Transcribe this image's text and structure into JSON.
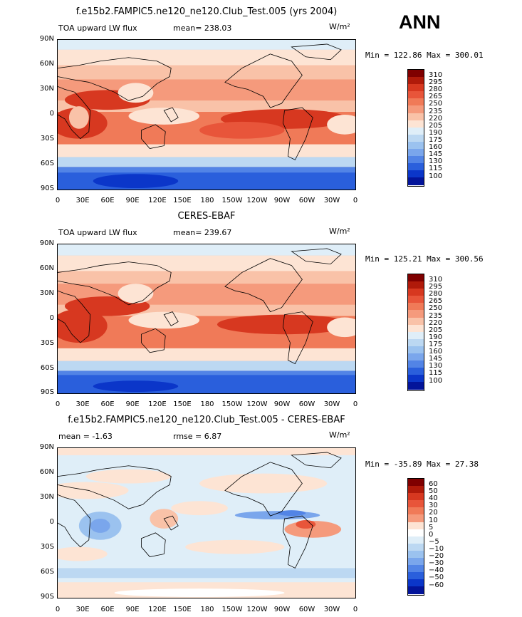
{
  "season": "ANN",
  "units": "W/m²",
  "panels": [
    {
      "title": "f.e15b2.FAMPIC5.ne120_ne120.Club_Test.005 (yrs 2004)",
      "left_label": "TOA upward LW flux",
      "center_label": "mean= 238.03",
      "units": "W/m²",
      "minmax": "Min = 122.86 Max = 300.01",
      "colorbar_labels": [
        "310",
        "295",
        "280",
        "265",
        "250",
        "235",
        "220",
        "205",
        "190",
        "175",
        "160",
        "145",
        "130",
        "115",
        "100"
      ],
      "kind": "model"
    },
    {
      "title": "CERES-EBAF",
      "left_label": "TOA upward LW flux",
      "center_label": "mean= 239.67",
      "units": "W/m²",
      "minmax": "Min = 125.21 Max = 300.56",
      "colorbar_labels": [
        "310",
        "295",
        "280",
        "265",
        "250",
        "235",
        "220",
        "205",
        "190",
        "175",
        "160",
        "145",
        "130",
        "115",
        "100"
      ],
      "kind": "obs"
    },
    {
      "title": "f.e15b2.FAMPIC5.ne120_ne120.Club_Test.005 - CERES-EBAF",
      "left_label": "mean =  -1.63",
      "center_label": "rmse =   6.87",
      "units": "W/m²",
      "minmax": "Min = -35.89 Max =  27.38",
      "colorbar_labels": [
        "60",
        "50",
        "40",
        "30",
        "20",
        "10",
        "5",
        "0",
        "−5",
        "−10",
        "−20",
        "−30",
        "−40",
        "−50",
        "−60"
      ],
      "kind": "diff"
    }
  ],
  "lat_labels": [
    "90N",
    "60N",
    "30N",
    "0",
    "30S",
    "60S",
    "90S"
  ],
  "lon_labels": [
    "0",
    "30E",
    "60E",
    "90E",
    "120E",
    "150E",
    "180",
    "150W",
    "120W",
    "90W",
    "60W",
    "30W",
    "0"
  ],
  "colors": {
    "abs_scale": [
      "#7f0000",
      "#b01a0a",
      "#d73820",
      "#e8553a",
      "#f07a58",
      "#f59a7c",
      "#f9c2a8",
      "#fde4d4",
      "#dfeef8",
      "#bcd8f2",
      "#9bc2ef",
      "#7aa6ec",
      "#5284e6",
      "#2a5fdc",
      "#0b36c9",
      "#03149a"
    ],
    "diff_scale": [
      "#7f0000",
      "#b01a0a",
      "#d73820",
      "#e8553a",
      "#f07a58",
      "#f59a7c",
      "#fde4d4",
      "#ffffff",
      "#dfeef8",
      "#bcd8f2",
      "#9bc2ef",
      "#7aa6ec",
      "#5284e6",
      "#2a5fdc",
      "#0b36c9",
      "#03149a"
    ]
  }
}
